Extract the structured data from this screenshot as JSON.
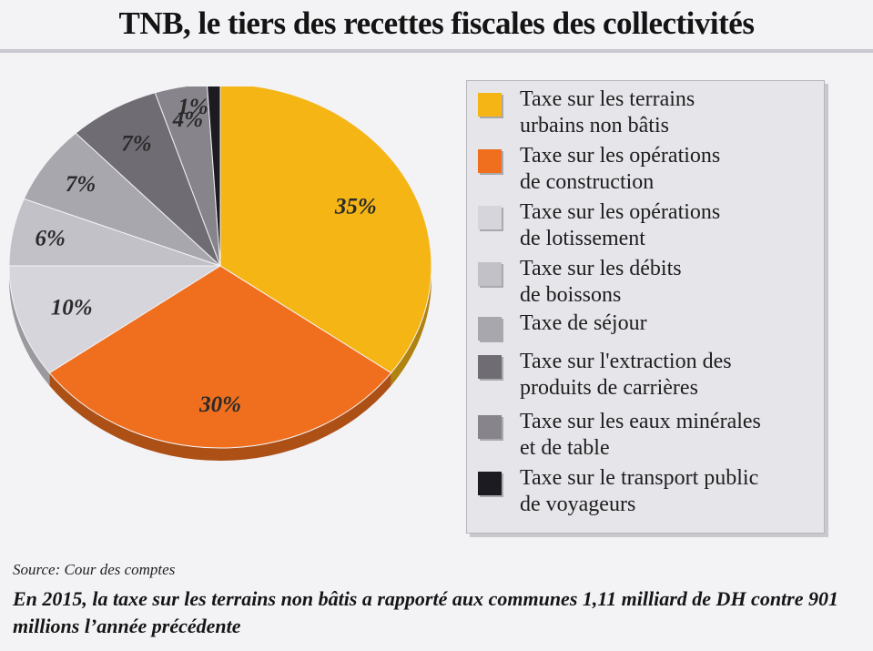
{
  "title": "TNB, le tiers des recettes fiscales des collectivités",
  "chart_data": {
    "type": "pie",
    "title": "TNB, le tiers des recettes fiscales des collectivités",
    "unit": "%",
    "slices": [
      {
        "label": "Taxe sur les terrains urbains non bâtis",
        "value": 35,
        "display": "35%",
        "color": "#f4b515"
      },
      {
        "label": "Taxe sur les opérations de construction",
        "value": 30,
        "display": "30%",
        "color": "#ef6f1e"
      },
      {
        "label": "Taxe sur les opérations de lotissement",
        "value": 10,
        "display": "10%",
        "color": "#d7d5dc"
      },
      {
        "label": "Taxe sur les débits de boissons",
        "value": 6,
        "display": "6%",
        "color": "#c3c1c8"
      },
      {
        "label": "Taxe de séjour",
        "value": 7,
        "display": "7%",
        "color": "#a9a7ae"
      },
      {
        "label": "Taxe sur l'extraction des produits de carrières",
        "value": 7,
        "display": "7%",
        "color": "#6f6c74"
      },
      {
        "label": "Taxe sur les eaux minérales et de table",
        "value": 4,
        "display": "4%",
        "color": "#87848c"
      },
      {
        "label": "Taxe sur le transport public de voyageurs",
        "value": 1,
        "display": "1%",
        "color": "#1c1b21"
      }
    ],
    "legend_position": "right"
  },
  "legend": {
    "items": [
      {
        "line1": "Taxe sur les terrains",
        "line2": "urbains non bâtis",
        "color": "#f4b515"
      },
      {
        "line1": "Taxe sur les opérations",
        "line2": "de construction",
        "color": "#ef6f1e"
      },
      {
        "line1": "Taxe sur les opérations",
        "line2": "de lotissement",
        "color": "#d7d5dc"
      },
      {
        "line1": "Taxe sur les débits",
        "line2": "de boissons",
        "color": "#c3c1c8"
      },
      {
        "line1": "Taxe de séjour",
        "line2": "",
        "color": "#a9a7ae"
      },
      {
        "line1": "Taxe sur l'extraction des",
        "line2": "produits de carrières",
        "color": "#6f6c74"
      },
      {
        "line1": "Taxe sur les eaux minérales",
        "line2": "et de table",
        "color": "#87848c"
      },
      {
        "line1": "Taxe sur le transport public",
        "line2": "de voyageurs",
        "color": "#1c1b21"
      }
    ]
  },
  "source": "Source: Cour des comptes",
  "caption": "En 2015, la taxe sur les terrains non bâtis a rapporté aux communes 1,11 milliard de DH contre 901 millions l’année précédente"
}
